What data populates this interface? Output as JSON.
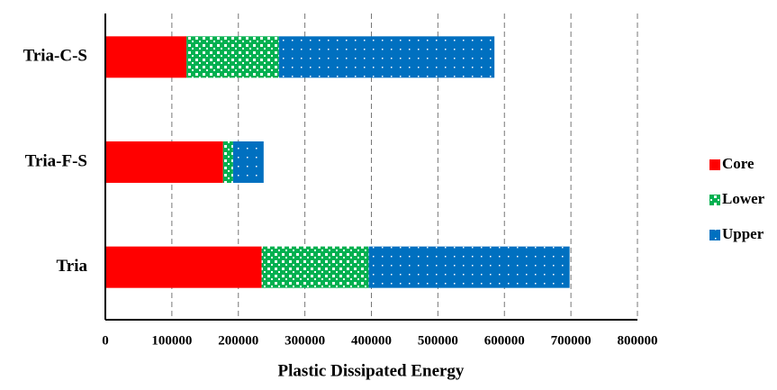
{
  "chart_data": {
    "type": "stacked-bar-horizontal",
    "x_label": "Plastic Dissipated Energy",
    "categories": [
      "Tria-C-S",
      "Tria-F-S",
      "Tria"
    ],
    "series": [
      {
        "name": "Core",
        "color": "#ff0000",
        "values": [
          122000,
          177000,
          235000
        ]
      },
      {
        "name": "Lower",
        "color": "#00b050",
        "values": [
          139000,
          15000,
          161000
        ]
      },
      {
        "name": "Upper",
        "color": "#0070c0",
        "values": [
          324000,
          46000,
          302000
        ]
      }
    ],
    "xlim": [
      0,
      800000
    ],
    "xticks": [
      0,
      100000,
      200000,
      300000,
      400000,
      500000,
      600000,
      700000,
      800000
    ],
    "grid": true,
    "legend": "right"
  }
}
